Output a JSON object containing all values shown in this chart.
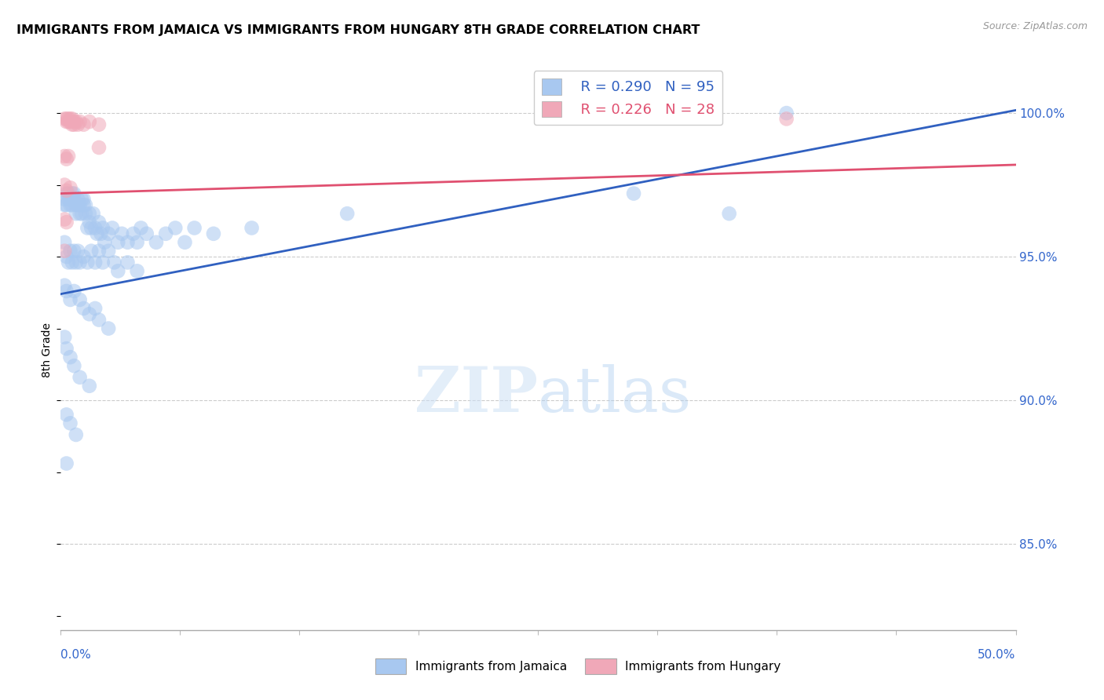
{
  "title": "IMMIGRANTS FROM JAMAICA VS IMMIGRANTS FROM HUNGARY 8TH GRADE CORRELATION CHART",
  "source": "Source: ZipAtlas.com",
  "ylabel": "8th Grade",
  "right_yticks": [
    "85.0%",
    "90.0%",
    "95.0%",
    "100.0%"
  ],
  "right_ytick_vals": [
    0.85,
    0.9,
    0.95,
    1.0
  ],
  "xlim": [
    0.0,
    0.5
  ],
  "ylim": [
    0.82,
    1.015
  ],
  "jamaica_R": 0.29,
  "jamaica_N": 95,
  "hungary_R": 0.226,
  "hungary_N": 28,
  "jamaica_color": "#a8c8f0",
  "hungary_color": "#f0a8b8",
  "jamaica_line_color": "#3060c0",
  "hungary_line_color": "#e05070",
  "legend_label_jamaica": "Immigrants from Jamaica",
  "legend_label_hungary": "Immigrants from Hungary",
  "jamaica_scatter": [
    [
      0.002,
      0.97
    ],
    [
      0.002,
      0.968
    ],
    [
      0.003,
      0.972
    ],
    [
      0.003,
      0.968
    ],
    [
      0.004,
      0.97
    ],
    [
      0.004,
      0.972
    ],
    [
      0.005,
      0.968
    ],
    [
      0.005,
      0.97
    ],
    [
      0.006,
      0.972
    ],
    [
      0.006,
      0.968
    ],
    [
      0.007,
      0.97
    ],
    [
      0.007,
      0.972
    ],
    [
      0.008,
      0.968
    ],
    [
      0.008,
      0.965
    ],
    [
      0.009,
      0.97
    ],
    [
      0.009,
      0.968
    ],
    [
      0.01,
      0.965
    ],
    [
      0.01,
      0.968
    ],
    [
      0.011,
      0.97
    ],
    [
      0.011,
      0.965
    ],
    [
      0.012,
      0.968
    ],
    [
      0.012,
      0.97
    ],
    [
      0.013,
      0.965
    ],
    [
      0.013,
      0.968
    ],
    [
      0.014,
      0.96
    ],
    [
      0.015,
      0.965
    ],
    [
      0.015,
      0.962
    ],
    [
      0.016,
      0.96
    ],
    [
      0.017,
      0.965
    ],
    [
      0.018,
      0.96
    ],
    [
      0.019,
      0.958
    ],
    [
      0.02,
      0.962
    ],
    [
      0.021,
      0.958
    ],
    [
      0.022,
      0.96
    ],
    [
      0.023,
      0.955
    ],
    [
      0.025,
      0.958
    ],
    [
      0.027,
      0.96
    ],
    [
      0.03,
      0.955
    ],
    [
      0.032,
      0.958
    ],
    [
      0.035,
      0.955
    ],
    [
      0.038,
      0.958
    ],
    [
      0.04,
      0.955
    ],
    [
      0.042,
      0.96
    ],
    [
      0.045,
      0.958
    ],
    [
      0.05,
      0.955
    ],
    [
      0.055,
      0.958
    ],
    [
      0.06,
      0.96
    ],
    [
      0.065,
      0.955
    ],
    [
      0.07,
      0.96
    ],
    [
      0.08,
      0.958
    ],
    [
      0.002,
      0.955
    ],
    [
      0.003,
      0.95
    ],
    [
      0.004,
      0.948
    ],
    [
      0.005,
      0.952
    ],
    [
      0.006,
      0.948
    ],
    [
      0.007,
      0.952
    ],
    [
      0.008,
      0.948
    ],
    [
      0.009,
      0.952
    ],
    [
      0.01,
      0.948
    ],
    [
      0.012,
      0.95
    ],
    [
      0.014,
      0.948
    ],
    [
      0.016,
      0.952
    ],
    [
      0.018,
      0.948
    ],
    [
      0.02,
      0.952
    ],
    [
      0.022,
      0.948
    ],
    [
      0.025,
      0.952
    ],
    [
      0.028,
      0.948
    ],
    [
      0.03,
      0.945
    ],
    [
      0.035,
      0.948
    ],
    [
      0.04,
      0.945
    ],
    [
      0.002,
      0.94
    ],
    [
      0.003,
      0.938
    ],
    [
      0.005,
      0.935
    ],
    [
      0.007,
      0.938
    ],
    [
      0.01,
      0.935
    ],
    [
      0.012,
      0.932
    ],
    [
      0.015,
      0.93
    ],
    [
      0.018,
      0.932
    ],
    [
      0.02,
      0.928
    ],
    [
      0.025,
      0.925
    ],
    [
      0.002,
      0.922
    ],
    [
      0.003,
      0.918
    ],
    [
      0.005,
      0.915
    ],
    [
      0.007,
      0.912
    ],
    [
      0.01,
      0.908
    ],
    [
      0.015,
      0.905
    ],
    [
      0.003,
      0.895
    ],
    [
      0.005,
      0.892
    ],
    [
      0.008,
      0.888
    ],
    [
      0.003,
      0.878
    ],
    [
      0.1,
      0.96
    ],
    [
      0.15,
      0.965
    ],
    [
      0.35,
      0.965
    ],
    [
      0.38,
      1.0
    ],
    [
      0.3,
      0.972
    ]
  ],
  "hungary_scatter": [
    [
      0.002,
      0.998
    ],
    [
      0.003,
      0.998
    ],
    [
      0.003,
      0.997
    ],
    [
      0.004,
      0.998
    ],
    [
      0.004,
      0.997
    ],
    [
      0.005,
      0.998
    ],
    [
      0.005,
      0.997
    ],
    [
      0.006,
      0.998
    ],
    [
      0.006,
      0.996
    ],
    [
      0.007,
      0.997
    ],
    [
      0.007,
      0.996
    ],
    [
      0.008,
      0.997
    ],
    [
      0.009,
      0.996
    ],
    [
      0.01,
      0.997
    ],
    [
      0.012,
      0.996
    ],
    [
      0.015,
      0.997
    ],
    [
      0.02,
      0.996
    ],
    [
      0.002,
      0.985
    ],
    [
      0.003,
      0.984
    ],
    [
      0.004,
      0.985
    ],
    [
      0.002,
      0.975
    ],
    [
      0.003,
      0.973
    ],
    [
      0.005,
      0.974
    ],
    [
      0.002,
      0.963
    ],
    [
      0.003,
      0.962
    ],
    [
      0.002,
      0.952
    ],
    [
      0.38,
      0.998
    ],
    [
      0.02,
      0.988
    ]
  ],
  "hungary_line_x": [
    0.0,
    0.5
  ],
  "hungary_line_y": [
    0.972,
    0.982
  ],
  "jamaica_line_x": [
    0.0,
    0.5
  ],
  "jamaica_line_y": [
    0.937,
    1.001
  ]
}
